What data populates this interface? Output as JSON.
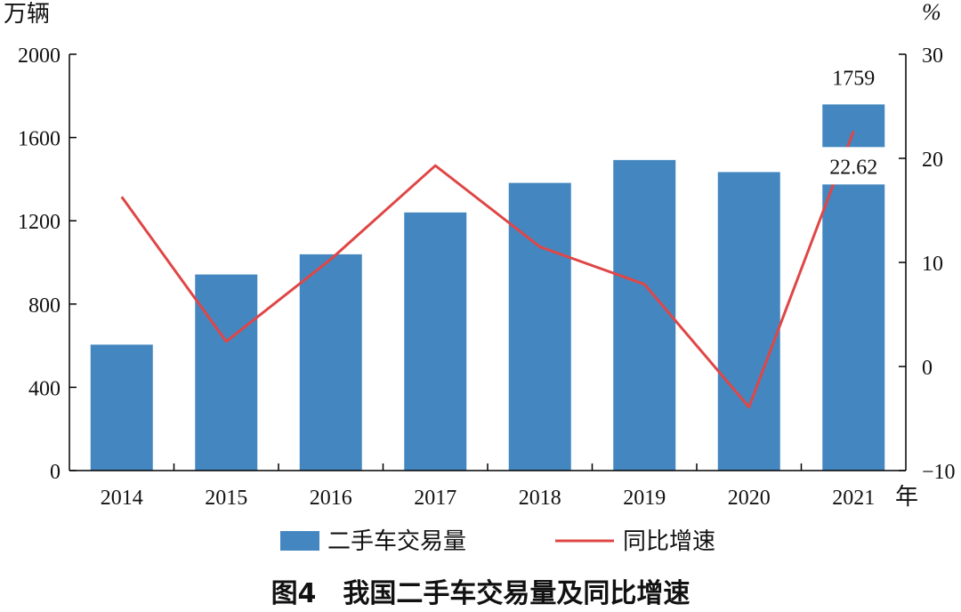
{
  "chart_data": {
    "type": "bar+line",
    "categories": [
      "2014",
      "2015",
      "2016",
      "2017",
      "2018",
      "2019",
      "2020",
      "2021"
    ],
    "series": [
      {
        "name": "二手车交易量",
        "type": "bar",
        "axis": "left",
        "color": "#4487c0",
        "values": [
          605,
          942,
          1039,
          1240,
          1382,
          1492,
          1434,
          1759
        ]
      },
      {
        "name": "同比增速",
        "type": "line",
        "axis": "right",
        "color": "#e04646",
        "values": [
          16.3,
          2.4,
          10.3,
          19.3,
          11.5,
          7.9,
          -3.9,
          22.62
        ]
      }
    ],
    "data_labels": [
      {
        "category": "2021",
        "series": "二手车交易量",
        "text": "1759"
      },
      {
        "category": "2021",
        "series": "同比增速",
        "text": "22.62"
      }
    ],
    "left_axis": {
      "unit": "万辆",
      "min": 0,
      "max": 2000,
      "ticks": [
        "0",
        "400",
        "800",
        "1200",
        "1600",
        "2000"
      ]
    },
    "right_axis": {
      "unit": "%",
      "min": -10,
      "max": 30,
      "ticks": [
        "−10",
        "0",
        "10",
        "20",
        "30"
      ]
    },
    "xlabel": "年",
    "grid": false,
    "legend_position": "bottom",
    "title": "图4　我国二手车交易量及同比增速"
  }
}
